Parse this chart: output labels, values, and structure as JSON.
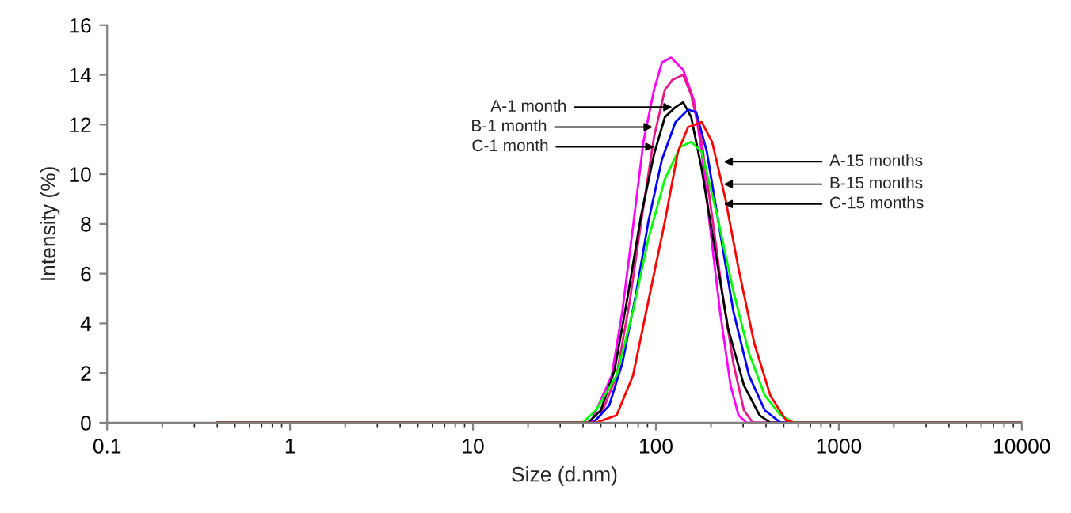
{
  "chart_data": {
    "type": "line",
    "xlabel": "Size (d.nm)",
    "ylabel": "Intensity (%)",
    "log": "x",
    "xlim": [
      0.1,
      10000
    ],
    "xticks": [
      0.1,
      1,
      10,
      100,
      1000,
      10000
    ],
    "ylim": [
      0,
      16
    ],
    "yticks": [
      0,
      2,
      4,
      6,
      8,
      10,
      12,
      14,
      16
    ],
    "grid": false,
    "marker": "none",
    "line_style": "solid",
    "series": [
      {
        "color": "#ff00ff",
        "x": [
          0.4,
          44,
          57.4,
          65.6,
          75,
          85.5,
          97.7,
          108,
          121,
          141,
          161,
          178,
          196,
          224,
          256,
          283,
          313,
          10000
        ],
        "values": [
          0,
          0,
          1.9,
          4.5,
          7.9,
          11.3,
          13.4,
          14.5,
          14.7,
          14.2,
          13.0,
          10.9,
          8.1,
          4.5,
          1.5,
          0.3,
          0,
          0
        ]
      },
      {
        "color": "#e8178a",
        "x": [
          0.4,
          45,
          50,
          61,
          72,
          85.5,
          97.7,
          112,
          123,
          141,
          156,
          178,
          203,
          232,
          265,
          303,
          339,
          10000
        ],
        "values": [
          0,
          0,
          0.3,
          1.9,
          4.9,
          8.7,
          11.5,
          13.4,
          13.8,
          14.0,
          13.2,
          11.3,
          8.3,
          5.1,
          2.4,
          0.5,
          0,
          0
        ]
      },
      {
        "color": "#000000",
        "x": [
          0.4,
          42.5,
          50,
          59.4,
          70.2,
          82.8,
          97.7,
          112,
          128,
          141,
          156,
          178,
          210,
          248,
          303,
          369,
          422,
          10000
        ],
        "values": [
          0,
          0,
          0.5,
          2.1,
          5.1,
          8.3,
          10.8,
          12.3,
          12.7,
          12.9,
          12.3,
          10.2,
          7.0,
          3.8,
          1.5,
          0.3,
          0,
          0
        ]
      },
      {
        "color": "#0000ff",
        "x": [
          0.4,
          45.5,
          55.6,
          65.6,
          77.5,
          91,
          108,
          128,
          150,
          166,
          190,
          224,
          265,
          323,
          394,
          481,
          10000
        ],
        "values": [
          0,
          0,
          0.7,
          2.4,
          5.1,
          8.1,
          10.6,
          12.1,
          12.6,
          12.5,
          10.9,
          7.7,
          4.5,
          1.9,
          0.5,
          0,
          0
        ]
      },
      {
        "color": "#00ff00",
        "x": [
          0.4,
          39.8,
          47,
          61,
          75,
          91,
          112,
          136,
          156,
          178,
          217,
          265,
          323,
          394,
          481,
          569,
          10000
        ],
        "values": [
          0,
          0,
          0.5,
          1.9,
          4.5,
          7.4,
          9.8,
          11.1,
          11.3,
          10.9,
          8.3,
          5.3,
          2.8,
          1.1,
          0.3,
          0,
          0
        ]
      },
      {
        "color": "#ff0000",
        "x": [
          0.4,
          47,
          61,
          75,
          91,
          112,
          132,
          150,
          178,
          203,
          240,
          283,
          345,
          422,
          514,
          569,
          10000
        ],
        "values": [
          0,
          0,
          0.3,
          1.9,
          4.9,
          8.1,
          10.9,
          11.9,
          12.1,
          11.3,
          9.0,
          6.2,
          3.2,
          1.1,
          0.1,
          0,
          0
        ]
      }
    ],
    "annotations": [
      {
        "text": "A-1 month",
        "x": 123,
        "y": 12.7
      },
      {
        "text": "B-1 month",
        "x": 96,
        "y": 11.9
      },
      {
        "text": "C-1 month",
        "x": 98,
        "y": 11.1
      },
      {
        "text": "A-15 months",
        "x": 235,
        "y": 10.5
      },
      {
        "text": "B-15 months",
        "x": 235,
        "y": 9.6
      },
      {
        "text": "C-15 months",
        "x": 235,
        "y": 8.8
      }
    ]
  }
}
